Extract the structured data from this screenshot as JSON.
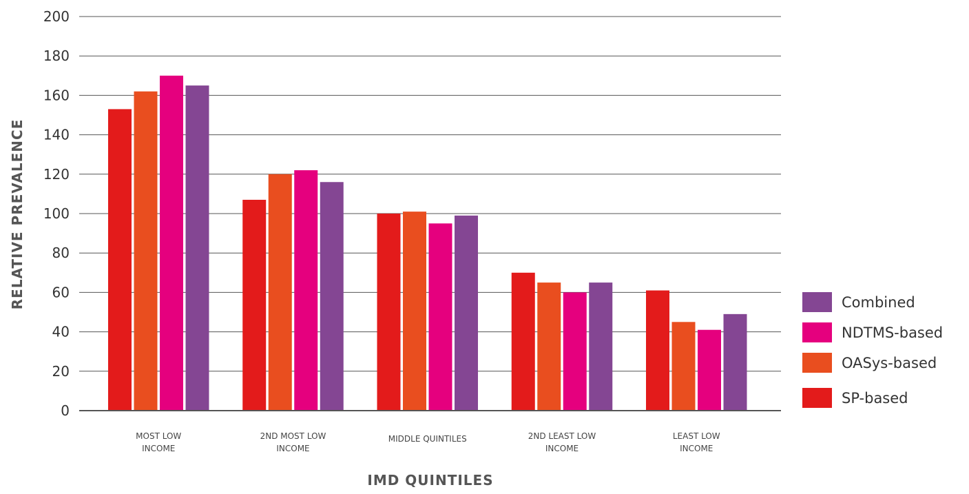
{
  "chart_data": {
    "type": "bar",
    "title": "",
    "xlabel": "IMD QUINTILES",
    "ylabel": "RELATIVE PREVALENCE",
    "ylim": [
      0,
      200
    ],
    "yticks": [
      0,
      20,
      40,
      60,
      80,
      100,
      120,
      140,
      160,
      180,
      200
    ],
    "grid": true,
    "legend_position": "right",
    "categories": [
      [
        "MOST LOW",
        "INCOME"
      ],
      [
        "2ND MOST LOW",
        "INCOME"
      ],
      [
        "MIDDLE QUINTILES"
      ],
      [
        "2ND LEAST LOW",
        "INCOME"
      ],
      [
        "LEAST LOW",
        "INCOME"
      ]
    ],
    "series": [
      {
        "name": "SP-based",
        "color": "#e31b1b",
        "values": [
          153,
          107,
          100,
          70,
          61
        ]
      },
      {
        "name": "OASys-based",
        "color": "#e94e1f",
        "values": [
          162,
          120,
          101,
          65,
          45
        ]
      },
      {
        "name": "NDTMS-based",
        "color": "#e5007e",
        "values": [
          170,
          122,
          95,
          60,
          41
        ]
      },
      {
        "name": "Combined",
        "color": "#844693",
        "values": [
          165,
          116,
          99,
          65,
          49
        ]
      }
    ],
    "legend_order": [
      "Combined",
      "NDTMS-based",
      "OASys-based",
      "SP-based"
    ]
  }
}
